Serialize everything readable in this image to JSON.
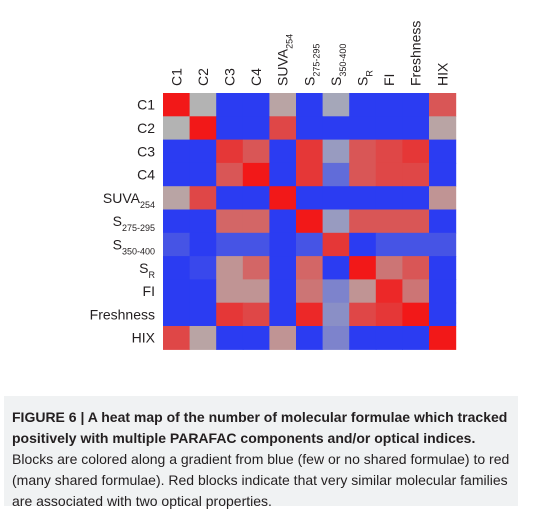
{
  "chart_data": {
    "type": "heatmap",
    "rows": [
      {
        "main": "C1",
        "sub": ""
      },
      {
        "main": "C2",
        "sub": ""
      },
      {
        "main": "C3",
        "sub": ""
      },
      {
        "main": "C4",
        "sub": ""
      },
      {
        "main": "SUVA",
        "sub": "254"
      },
      {
        "main": "S",
        "sub": "275-295"
      },
      {
        "main": "S",
        "sub": "350-400"
      },
      {
        "main": "S",
        "sub": "R"
      },
      {
        "main": "FI",
        "sub": ""
      },
      {
        "main": "Freshness",
        "sub": ""
      },
      {
        "main": "HIX",
        "sub": ""
      }
    ],
    "columns": [
      {
        "main": "C1",
        "sub": ""
      },
      {
        "main": "C2",
        "sub": ""
      },
      {
        "main": "C3",
        "sub": ""
      },
      {
        "main": "C4",
        "sub": ""
      },
      {
        "main": "SUVA",
        "sub": "254"
      },
      {
        "main": "S",
        "sub": "275-295"
      },
      {
        "main": "S",
        "sub": "350-400"
      },
      {
        "main": "S",
        "sub": "R"
      },
      {
        "main": "FI",
        "sub": ""
      },
      {
        "main": "Freshness",
        "sub": ""
      },
      {
        "main": "HIX",
        "sub": ""
      }
    ],
    "values": [
      [
        1.0,
        0.5,
        0.0,
        0.0,
        0.55,
        0.0,
        0.45,
        0.0,
        0.0,
        0.0,
        0.8
      ],
      [
        0.5,
        1.0,
        0.0,
        0.0,
        0.85,
        0.0,
        0.0,
        0.0,
        0.0,
        0.0,
        0.55
      ],
      [
        0.0,
        0.0,
        0.9,
        0.8,
        0.0,
        0.9,
        0.4,
        0.8,
        0.85,
        0.9,
        0.0
      ],
      [
        0.0,
        0.0,
        0.8,
        1.0,
        0.0,
        0.9,
        0.2,
        0.8,
        0.85,
        0.85,
        0.0
      ],
      [
        0.55,
        0.85,
        0.0,
        0.0,
        1.0,
        0.0,
        0.0,
        0.0,
        0.0,
        0.0,
        0.6
      ],
      [
        0.0,
        0.0,
        0.75,
        0.75,
        0.0,
        1.0,
        0.4,
        0.8,
        0.8,
        0.8,
        0.0
      ],
      [
        0.1,
        0.0,
        0.1,
        0.1,
        0.0,
        0.1,
        0.9,
        0.0,
        0.1,
        0.1,
        0.1
      ],
      [
        0.0,
        0.05,
        0.6,
        0.75,
        0.0,
        0.75,
        0.0,
        1.0,
        0.7,
        0.8,
        0.0
      ],
      [
        0.0,
        0.0,
        0.6,
        0.6,
        0.0,
        0.7,
        0.3,
        0.6,
        0.95,
        0.7,
        0.0
      ],
      [
        0.0,
        0.0,
        0.9,
        0.85,
        0.0,
        0.95,
        0.35,
        0.85,
        0.9,
        1.0,
        0.0
      ],
      [
        0.85,
        0.55,
        0.0,
        0.0,
        0.6,
        0.0,
        0.3,
        0.0,
        0.0,
        0.0,
        1.0
      ]
    ],
    "color_scale": {
      "low": "#2b3cf2",
      "mid": "#b3b3b3",
      "high": "#f21818"
    },
    "grid": false,
    "legend": "none"
  },
  "caption": {
    "figure_label": "FIGURE 6 |",
    "bold_title": "A heat map of the number of molecular formulae which tracked positively with multiple PARAFAC components and/or optical indices.",
    "body": "Blocks are colored along a gradient from blue (few or no shared formulae) to red (many shared formulae). Red blocks indicate that very similar molecular families are associated with two optical properties."
  }
}
